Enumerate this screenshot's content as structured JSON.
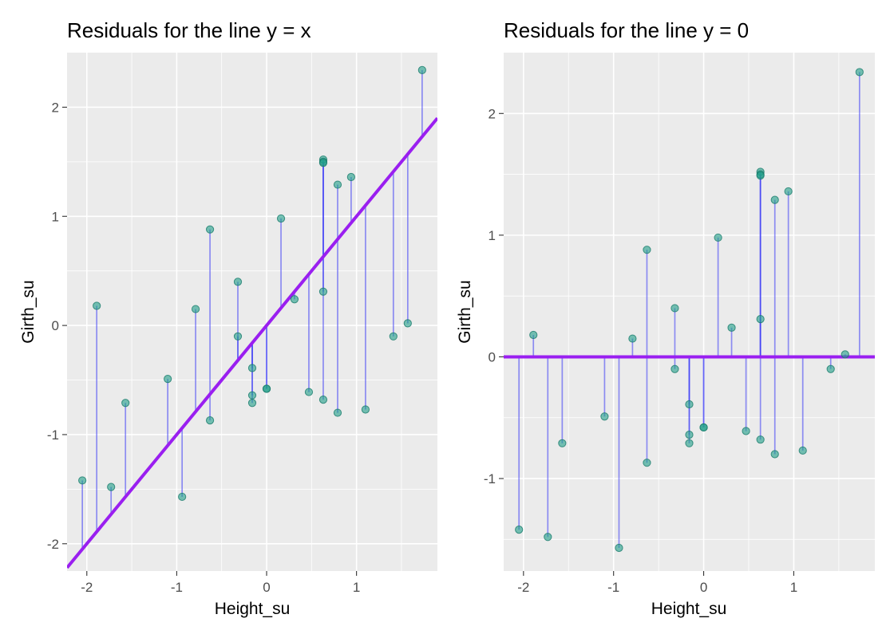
{
  "chart_data": [
    {
      "type": "scatter",
      "title": "Residuals for the line y = x",
      "xlabel": "Height_su",
      "ylabel": "Girth_su",
      "xlim": [
        -2.22,
        1.9
      ],
      "ylim": [
        -2.25,
        2.5
      ],
      "xticks": [
        -2,
        -1,
        0,
        1
      ],
      "yticks": [
        -2,
        -1,
        0,
        1,
        2
      ],
      "reference_line": "y = x",
      "grid": true,
      "x": [
        -2.05,
        -1.89,
        -1.73,
        -1.57,
        -1.1,
        -0.94,
        -0.79,
        -0.63,
        -0.63,
        -0.32,
        -0.32,
        -0.16,
        -0.16,
        -0.16,
        0.0,
        0.0,
        0.16,
        0.31,
        0.47,
        0.63,
        0.63,
        0.63,
        0.63,
        0.63,
        0.79,
        0.79,
        0.94,
        1.1,
        1.41,
        1.57,
        1.73
      ],
      "y": [
        -1.42,
        0.18,
        -1.48,
        -0.71,
        -0.49,
        -1.57,
        0.15,
        0.88,
        -0.87,
        0.4,
        -0.1,
        -0.39,
        -0.64,
        -0.71,
        -0.58,
        -0.58,
        0.98,
        0.24,
        -0.61,
        1.52,
        1.5,
        0.31,
        -0.68,
        1.49,
        1.29,
        -0.8,
        1.36,
        -0.77,
        -0.1,
        0.02,
        2.34
      ]
    },
    {
      "type": "scatter",
      "title": "Residuals for the line y = 0",
      "xlabel": "Height_su",
      "ylabel": "Girth_su",
      "xlim": [
        -2.22,
        1.9
      ],
      "ylim": [
        -1.76,
        2.5
      ],
      "xticks": [
        -2,
        -1,
        0,
        1
      ],
      "yticks": [
        -1,
        0,
        1,
        2
      ],
      "reference_line": "y = 0",
      "grid": true,
      "x": [
        -2.05,
        -1.89,
        -1.73,
        -1.57,
        -1.1,
        -0.94,
        -0.79,
        -0.63,
        -0.63,
        -0.32,
        -0.32,
        -0.16,
        -0.16,
        -0.16,
        0.0,
        0.0,
        0.16,
        0.31,
        0.47,
        0.63,
        0.63,
        0.63,
        0.63,
        0.63,
        0.79,
        0.79,
        0.94,
        1.1,
        1.41,
        1.57,
        1.73
      ],
      "y": [
        -1.42,
        0.18,
        -1.48,
        -0.71,
        -0.49,
        -1.57,
        0.15,
        0.88,
        -0.87,
        0.4,
        -0.1,
        -0.39,
        -0.64,
        -0.71,
        -0.58,
        -0.58,
        0.98,
        0.24,
        -0.61,
        1.52,
        1.5,
        0.31,
        -0.68,
        1.49,
        1.29,
        -0.8,
        1.36,
        -0.77,
        -0.1,
        0.02,
        2.34
      ]
    }
  ],
  "colors": {
    "panel": "#ebebeb",
    "point": "#1f9e89",
    "residual": "#3d3df5",
    "reference_line": "#9a1ff0"
  }
}
